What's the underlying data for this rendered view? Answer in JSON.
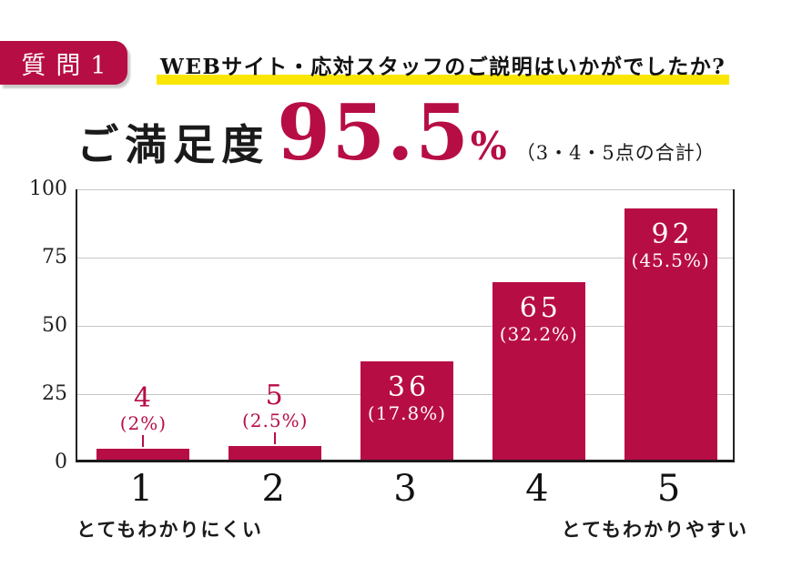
{
  "badge": {
    "label": "質問1"
  },
  "header": {
    "question": "WEBサイト・応対スタッフのご説明はいかがでしたか?"
  },
  "headline": {
    "prefix": "ご満足度",
    "value": "95.5",
    "unit": "%",
    "note": "（3・4・5点の合計）"
  },
  "chart_data": {
    "type": "bar",
    "title": "ご満足度 95.5%（3・4・5点の合計）",
    "categories": [
      "1",
      "2",
      "3",
      "4",
      "5"
    ],
    "values": [
      4,
      5,
      36,
      65,
      92
    ],
    "percent_labels": [
      "(2%)",
      "(2.5%)",
      "(17.8%)",
      "(32.2%)",
      "(45.5%)"
    ],
    "label_placement": [
      "above",
      "above",
      "inside",
      "inside",
      "inside"
    ],
    "ylim": [
      0,
      100
    ],
    "yticks": [
      0,
      25,
      50,
      75,
      100
    ],
    "grid": true,
    "legend": "none",
    "bar_color": "#b70d45",
    "axis_labels": {
      "left": "とてもわかりにくい",
      "right": "とてもわかりやすい"
    }
  },
  "colors": {
    "accent_crimson": "#b70d45",
    "highlight_yellow": "#fae605",
    "gridline_gray": "#c7c7c7",
    "text_black": "#1a1a1a"
  }
}
